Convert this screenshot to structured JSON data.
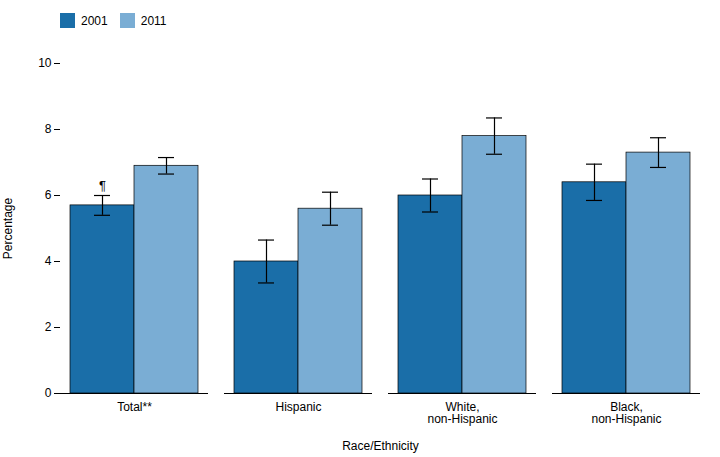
{
  "chart_data": {
    "type": "bar",
    "categories": [
      "Total**",
      "Hispanic",
      "White,\nnon-Hispanic",
      "Black,\nnon-Hispanic"
    ],
    "series": [
      {
        "name": "2001",
        "color": "#1a6ea8",
        "values": [
          5.7,
          4.0,
          6.0,
          6.4
        ],
        "errors": [
          0.3,
          0.65,
          0.5,
          0.55
        ]
      },
      {
        "name": "2011",
        "color": "#7aadd4",
        "values": [
          6.9,
          5.6,
          7.8,
          7.3
        ],
        "errors": [
          0.25,
          0.5,
          0.55,
          0.45
        ]
      }
    ],
    "xlabel": "Race/Ethnicity",
    "ylabel": "Percentage",
    "ylim": [
      0,
      10
    ],
    "yticks": [
      0,
      2,
      4,
      6,
      8,
      10
    ],
    "grid": false,
    "legend": "upper left",
    "annotations": [
      {
        "text": "¶",
        "category": "Total**",
        "series": "2001"
      }
    ]
  }
}
